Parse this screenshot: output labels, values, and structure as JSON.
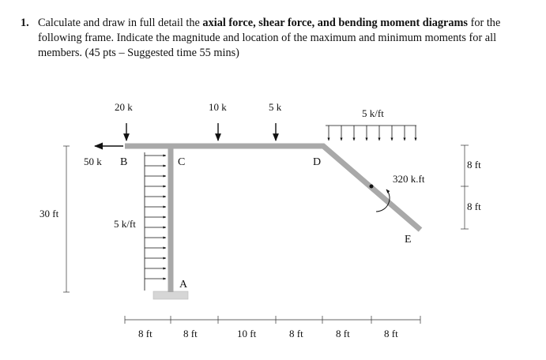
{
  "problem": {
    "number": "1.",
    "intro": "Calculate and draw in full detail the ",
    "bold": "axial force, shear force, and bending moment diagrams",
    "rest": " for the following frame. Indicate the magnitude and location of the maximum and minimum moments for all members. (45 pts – Suggested time 55 mins)"
  },
  "frame": {
    "nodes": {
      "a": "A",
      "b": "B",
      "c": "C",
      "d": "D",
      "e": "E"
    },
    "loads": {
      "p20": "20 k",
      "p10": "10 k",
      "p5": "5 k",
      "h50": "50 k",
      "dist_top": "5 k/ft",
      "dist_left": "5 k/ft",
      "moment": "320 k.ft"
    },
    "dims": {
      "height": "30 ft",
      "right_upper": "8 ft",
      "right_lower": "8 ft",
      "bottom": [
        "8 ft",
        "8 ft",
        "10 ft",
        "8 ft",
        "8 ft",
        "8 ft"
      ]
    }
  }
}
